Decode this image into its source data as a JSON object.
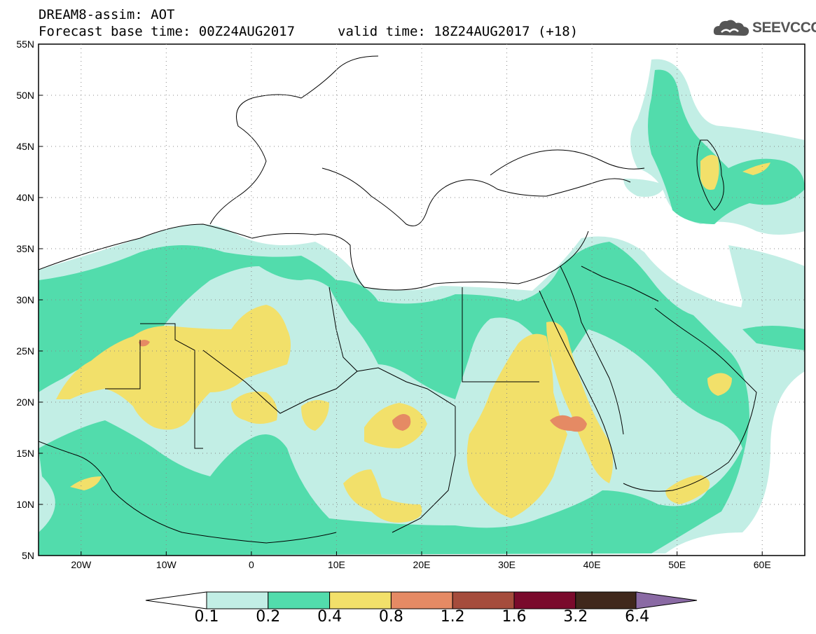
{
  "header": {
    "line1": "DREAM8-assim: AOT",
    "line2": "Forecast base time: 00Z24AUG2017",
    "valid": "valid time: 18Z24AUG2017 (+18)"
  },
  "logo": {
    "text": "SEEVCCC",
    "icon": "cloud-icon"
  },
  "map": {
    "lat_labels": [
      "55N",
      "50N",
      "45N",
      "40N",
      "35N",
      "30N",
      "25N",
      "20N",
      "15N",
      "10N",
      "5N"
    ],
    "lon_labels": [
      "20W",
      "10W",
      "0",
      "10E",
      "20E",
      "30E",
      "40E",
      "50E",
      "60E"
    ],
    "lon_range": [
      -25,
      65
    ],
    "lat_range": [
      5,
      55
    ]
  },
  "colorbar": {
    "labels": [
      "0.1",
      "0.2",
      "0.4",
      "0.8",
      "1.2",
      "1.6",
      "3.2",
      "6.4"
    ],
    "colors": [
      "#ffffff",
      "#c2eee5",
      "#52dcac",
      "#f2e06a",
      "#e58a64",
      "#a54c3c",
      "#7a0a2c",
      "#40281c",
      "#8a6aa4"
    ]
  },
  "colors": {
    "c1": "#c2eee5",
    "c2": "#52dcac",
    "c3": "#f2e06a",
    "c4": "#e58a64"
  }
}
